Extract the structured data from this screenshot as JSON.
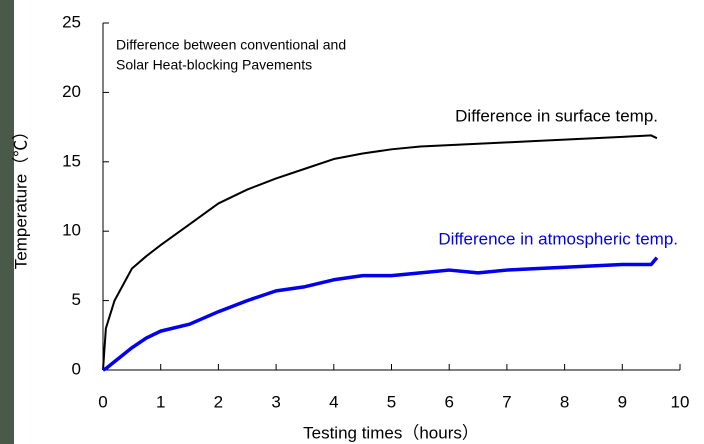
{
  "chart_data": {
    "type": "line",
    "annotation_lines": [
      "Difference between conventional and",
      "Solar Heat-blocking Pavements"
    ],
    "x_label": "Testing times（hours）",
    "y_label": "Temperature（℃）",
    "xlim": [
      0,
      10
    ],
    "xticks": [
      0,
      1,
      2,
      3,
      4,
      5,
      6,
      7,
      8,
      9,
      10
    ],
    "ylim": [
      0,
      25
    ],
    "yticks": [
      0,
      5,
      10,
      15,
      20,
      25
    ],
    "x": [
      0,
      0.05,
      0.2,
      0.5,
      0.75,
      1,
      1.5,
      2,
      2.5,
      3,
      3.5,
      4,
      4.5,
      5,
      5.5,
      6,
      6.5,
      7,
      7.5,
      8,
      8.5,
      9,
      9.5,
      9.6
    ],
    "series": [
      {
        "name": "Difference in surface temp.",
        "color": "#000000",
        "line_width": 2,
        "values": [
          0,
          3,
          5,
          7.3,
          8.2,
          9,
          10.5,
          12,
          13,
          13.8,
          14.5,
          15.2,
          15.6,
          15.9,
          16.1,
          16.2,
          16.3,
          16.4,
          16.5,
          16.6,
          16.7,
          16.8,
          16.9,
          16.7
        ]
      },
      {
        "name": "Difference in atmospheric temp.",
        "color": "#0000ee",
        "line_width": 3.5,
        "values": [
          0,
          0.1,
          0.6,
          1.6,
          2.3,
          2.8,
          3.3,
          4.2,
          5,
          5.7,
          6,
          6.5,
          6.8,
          6.8,
          7,
          7.2,
          7,
          7.2,
          7.3,
          7.4,
          7.5,
          7.6,
          7.6,
          8.1
        ]
      }
    ]
  }
}
